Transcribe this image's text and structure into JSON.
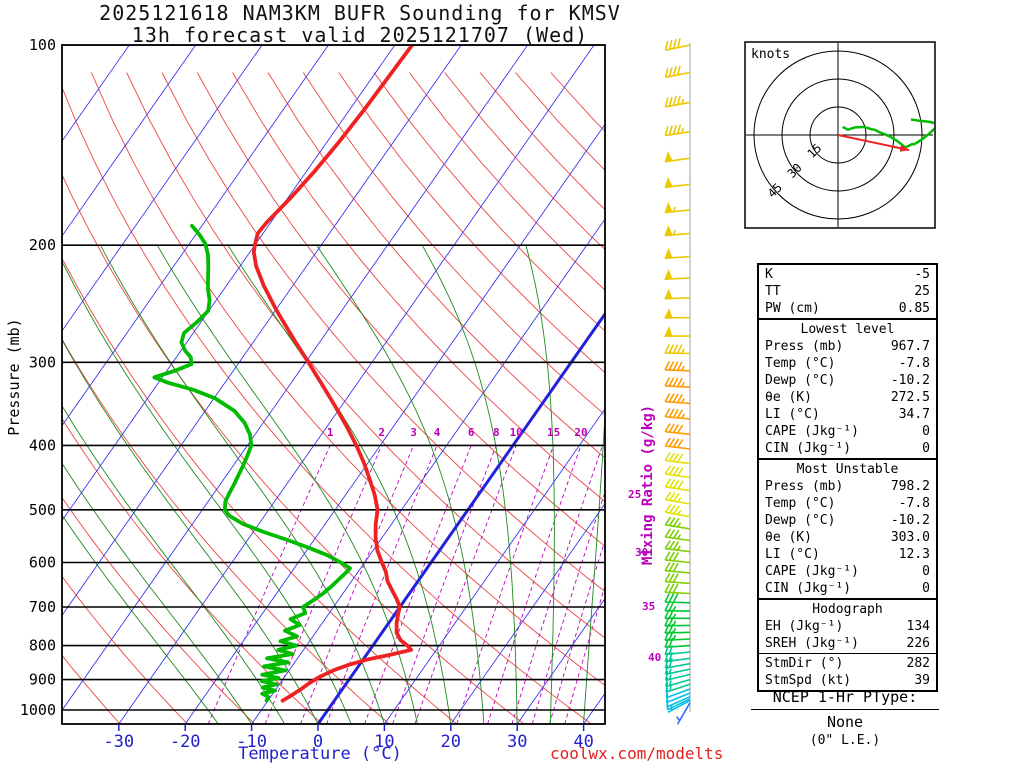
{
  "title": {
    "line1": "2025121618 NAM3KM BUFR Sounding for KMSV",
    "line2": "13h forecast valid 2025121707 (Wed)"
  },
  "watermark": "coolwx.com/modelts",
  "axes": {
    "x_label": "Temperature (°C)",
    "y_label": "Pressure (mb)",
    "right_label": "Mixing Ratio (g/kg)",
    "x_ticks": [
      -30,
      -20,
      -10,
      0,
      10,
      20,
      30,
      40
    ],
    "y_ticks": [
      100,
      200,
      300,
      400,
      500,
      600,
      700,
      800,
      900,
      1000
    ],
    "mixing_ratio_labels": [
      1,
      2,
      3,
      4,
      6,
      8,
      10,
      15,
      20
    ],
    "mixing_ratio_right_labels": [
      25,
      30,
      35,
      40
    ]
  },
  "hodograph": {
    "unit_label": "knots",
    "ring_labels": [
      15,
      30,
      45
    ],
    "rings_kt": [
      15,
      30,
      45
    ],
    "storm_motion": {
      "dir_deg": 282,
      "spd_kt": 39
    }
  },
  "ptype": {
    "label": "NCEP 1-Hr PType:",
    "value": "None",
    "footnote": "(0\" L.E.)"
  },
  "table": {
    "sections": [
      {
        "rows": [
          [
            "K",
            "-5"
          ],
          [
            "TT",
            "25"
          ],
          [
            "PW (cm)",
            "0.85"
          ]
        ]
      },
      {
        "header": "Lowest level",
        "rows": [
          [
            "Press (mb)",
            "967.7"
          ],
          [
            "Temp (°C)",
            "-7.8"
          ],
          [
            "Dewp (°C)",
            "-10.2"
          ],
          [
            "θe (K)",
            "272.5"
          ],
          [
            "LI (°C)",
            "34.7"
          ],
          [
            "CAPE (Jkg⁻¹)",
            "0"
          ],
          [
            "CIN (Jkg⁻¹)",
            "0"
          ]
        ]
      },
      {
        "header": "Most Unstable",
        "rows": [
          [
            "Press (mb)",
            "798.2"
          ],
          [
            "Temp (°C)",
            "-7.8"
          ],
          [
            "Dewp (°C)",
            "-10.2"
          ],
          [
            "θe (K)",
            "303.0"
          ],
          [
            "LI (°C)",
            "12.3"
          ],
          [
            "CAPE (Jkg⁻¹)",
            "0"
          ],
          [
            "CIN (Jkg⁻¹)",
            "0"
          ]
        ]
      },
      {
        "header": "Hodograph",
        "rows": [
          [
            "EH (Jkg⁻¹)",
            "134"
          ],
          [
            "SREH (Jkg⁻¹)",
            "226"
          ]
        ],
        "rows2": [
          [
            "StmDir (°)",
            "282"
          ],
          [
            "StmSpd (kt)",
            "39"
          ]
        ]
      }
    ]
  },
  "colors": {
    "isotherm": "#3b3bee",
    "isotherm_zero": "#2222dd",
    "dry_adiabat": "#ee4444",
    "moist_adiabat": "#1d8a1d",
    "mixing_ratio": "#bb00bb",
    "temperature": "#ee2222",
    "dewpoint": "#00bb00",
    "pressure_line": "#000000",
    "axis_temp": "#2222cc",
    "watermark": "#e02020",
    "wind_column_line": "#888888",
    "hodograph_trace": "#00bb00",
    "storm_motion": "#ee2222"
  },
  "chart_data": {
    "type": "skewt-log-p sounding",
    "station": "KMSV",
    "model": "NAM3KM BUFR",
    "pressure_range_mb": [
      100,
      1050
    ],
    "temp_axis_range_c": [
      -40,
      45
    ],
    "isotherms_c": {
      "min": -120,
      "max": 40,
      "step": 10
    },
    "dry_adiabats_theta_k": {
      "min": 230,
      "max": 450,
      "step": 10
    },
    "moist_adiabat_start_temps_c": [
      -15,
      -10,
      -5,
      0,
      5,
      10,
      15,
      20,
      25,
      30,
      35,
      40
    ],
    "mixing_ratio_lines_gkg": [
      1,
      2,
      3,
      4,
      6,
      8,
      10,
      15,
      20,
      25,
      30,
      35,
      40
    ],
    "temperature_profile": [
      [
        968,
        -7.8
      ],
      [
        950,
        -7.0
      ],
      [
        930,
        -6.2
      ],
      [
        910,
        -5.6
      ],
      [
        890,
        -4.6
      ],
      [
        870,
        -3.2
      ],
      [
        855,
        -1.6
      ],
      [
        840,
        0.6
      ],
      [
        825,
        3.8
      ],
      [
        812,
        6.2
      ],
      [
        800,
        5.2
      ],
      [
        785,
        3.6
      ],
      [
        765,
        2.2
      ],
      [
        740,
        1.2
      ],
      [
        715,
        0.4
      ],
      [
        700,
        0.0
      ],
      [
        680,
        -1.4
      ],
      [
        660,
        -3.0
      ],
      [
        640,
        -4.6
      ],
      [
        620,
        -5.8
      ],
      [
        600,
        -7.4
      ],
      [
        575,
        -9.4
      ],
      [
        550,
        -11.0
      ],
      [
        525,
        -12.4
      ],
      [
        500,
        -13.6
      ],
      [
        475,
        -15.6
      ],
      [
        450,
        -18.0
      ],
      [
        425,
        -20.6
      ],
      [
        400,
        -23.6
      ],
      [
        375,
        -27.0
      ],
      [
        350,
        -30.8
      ],
      [
        325,
        -35.0
      ],
      [
        300,
        -39.6
      ],
      [
        275,
        -44.6
      ],
      [
        250,
        -50.0
      ],
      [
        230,
        -54.4
      ],
      [
        215,
        -57.6
      ],
      [
        205,
        -59.4
      ],
      [
        200,
        -60.0
      ],
      [
        192,
        -60.8
      ],
      [
        185,
        -60.6
      ],
      [
        170,
        -59.6
      ],
      [
        155,
        -58.8
      ],
      [
        140,
        -58.2
      ],
      [
        125,
        -57.8
      ],
      [
        112,
        -57.6
      ],
      [
        100,
        -57.4
      ]
    ],
    "dewpoint_profile": [
      [
        968,
        -10.2
      ],
      [
        955,
        -10.4
      ],
      [
        945,
        -11.6
      ],
      [
        935,
        -10.0
      ],
      [
        925,
        -12.2
      ],
      [
        915,
        -10.4
      ],
      [
        905,
        -13.0
      ],
      [
        895,
        -10.8
      ],
      [
        885,
        -13.6
      ],
      [
        872,
        -10.6
      ],
      [
        860,
        -14.2
      ],
      [
        848,
        -11.0
      ],
      [
        836,
        -14.6
      ],
      [
        824,
        -11.2
      ],
      [
        812,
        -13.8
      ],
      [
        800,
        -11.6
      ],
      [
        788,
        -14.4
      ],
      [
        775,
        -12.4
      ],
      [
        760,
        -14.8
      ],
      [
        745,
        -13.2
      ],
      [
        730,
        -15.2
      ],
      [
        715,
        -13.6
      ],
      [
        700,
        -14.6
      ],
      [
        685,
        -13.8
      ],
      [
        668,
        -13.0
      ],
      [
        652,
        -12.5
      ],
      [
        636,
        -12.1
      ],
      [
        620,
        -11.7
      ],
      [
        612,
        -11.6
      ],
      [
        600,
        -13.6
      ],
      [
        585,
        -16.4
      ],
      [
        570,
        -20.0
      ],
      [
        555,
        -24.0
      ],
      [
        540,
        -28.4
      ],
      [
        525,
        -32.4
      ],
      [
        510,
        -35.4
      ],
      [
        500,
        -36.6
      ],
      [
        486,
        -37.4
      ],
      [
        472,
        -37.7
      ],
      [
        458,
        -37.9
      ],
      [
        444,
        -38.2
      ],
      [
        430,
        -38.5
      ],
      [
        415,
        -38.9
      ],
      [
        400,
        -39.4
      ],
      [
        385,
        -40.8
      ],
      [
        370,
        -42.8
      ],
      [
        355,
        -45.6
      ],
      [
        340,
        -49.8
      ],
      [
        330,
        -54.0
      ],
      [
        322,
        -58.6
      ],
      [
        316,
        -61.2
      ],
      [
        309,
        -58.8
      ],
      [
        302,
        -57.0
      ],
      [
        295,
        -57.8
      ],
      [
        288,
        -59.4
      ],
      [
        280,
        -60.8
      ],
      [
        271,
        -61.4
      ],
      [
        261,
        -60.6
      ],
      [
        251,
        -60.1
      ],
      [
        242,
        -61.0
      ],
      [
        233,
        -62.4
      ],
      [
        224,
        -63.6
      ],
      [
        215,
        -64.8
      ],
      [
        207,
        -66.0
      ],
      [
        199,
        -67.6
      ],
      [
        193,
        -69.4
      ],
      [
        187,
        -71.5
      ]
    ],
    "wind_profile": [
      {
        "p": 100,
        "s": 40,
        "d": 258,
        "c": "#edc800"
      },
      {
        "p": 110,
        "s": 42,
        "d": 259,
        "c": "#edc800"
      },
      {
        "p": 122,
        "s": 44,
        "d": 260,
        "c": "#edc800"
      },
      {
        "p": 135,
        "s": 47,
        "d": 261,
        "c": "#edc800"
      },
      {
        "p": 148,
        "s": 50,
        "d": 262,
        "c": "#edc800"
      },
      {
        "p": 162,
        "s": 52,
        "d": 263,
        "c": "#edc800"
      },
      {
        "p": 177,
        "s": 53,
        "d": 264,
        "c": "#edc800"
      },
      {
        "p": 192,
        "s": 53,
        "d": 265,
        "c": "#edc800"
      },
      {
        "p": 208,
        "s": 52,
        "d": 266,
        "c": "#edc800"
      },
      {
        "p": 224,
        "s": 51,
        "d": 267,
        "c": "#edc800"
      },
      {
        "p": 240,
        "s": 50,
        "d": 268,
        "c": "#edc800"
      },
      {
        "p": 257,
        "s": 49,
        "d": 269,
        "c": "#edc800"
      },
      {
        "p": 274,
        "s": 48,
        "d": 270,
        "c": "#edc800"
      },
      {
        "p": 291,
        "s": 47,
        "d": 271,
        "c": "#edc800"
      },
      {
        "p": 309,
        "s": 46,
        "d": 272,
        "c": "#ff9d00"
      },
      {
        "p": 327,
        "s": 45,
        "d": 273,
        "c": "#ff9d00"
      },
      {
        "p": 346,
        "s": 44,
        "d": 274,
        "c": "#ff9d00"
      },
      {
        "p": 365,
        "s": 43,
        "d": 275,
        "c": "#ff9d00"
      },
      {
        "p": 385,
        "s": 42,
        "d": 276,
        "c": "#ff9d00"
      },
      {
        "p": 405,
        "s": 41,
        "d": 277,
        "c": "#ff9d00"
      },
      {
        "p": 426,
        "s": 40,
        "d": 277,
        "c": "#e2e200"
      },
      {
        "p": 447,
        "s": 39,
        "d": 278,
        "c": "#e2e200"
      },
      {
        "p": 468,
        "s": 38,
        "d": 279,
        "c": "#e2e200"
      },
      {
        "p": 490,
        "s": 37,
        "d": 280,
        "c": "#e2e200"
      },
      {
        "p": 512,
        "s": 36,
        "d": 280,
        "c": "#e2e200"
      },
      {
        "p": 534,
        "s": 35,
        "d": 279,
        "c": "#7ccf00"
      },
      {
        "p": 556,
        "s": 34,
        "d": 278,
        "c": "#7ccf00"
      },
      {
        "p": 578,
        "s": 33,
        "d": 277,
        "c": "#7ccf00"
      },
      {
        "p": 600,
        "s": 32,
        "d": 276,
        "c": "#7ccf00"
      },
      {
        "p": 622,
        "s": 31,
        "d": 275,
        "c": "#7ccf00"
      },
      {
        "p": 645,
        "s": 30,
        "d": 274,
        "c": "#7ccf00"
      },
      {
        "p": 668,
        "s": 29,
        "d": 273,
        "c": "#7ccf00"
      },
      {
        "p": 690,
        "s": 28,
        "d": 272,
        "c": "#00c832"
      },
      {
        "p": 710,
        "s": 27,
        "d": 271,
        "c": "#00c832"
      },
      {
        "p": 728,
        "s": 26,
        "d": 270,
        "c": "#00c832"
      },
      {
        "p": 746,
        "s": 25,
        "d": 269,
        "c": "#00c832"
      },
      {
        "p": 764,
        "s": 24,
        "d": 268,
        "c": "#00c832"
      },
      {
        "p": 782,
        "s": 23,
        "d": 267,
        "c": "#00c832"
      },
      {
        "p": 800,
        "s": 22,
        "d": 266,
        "c": "#00c832"
      },
      {
        "p": 818,
        "s": 21,
        "d": 264,
        "c": "#00c894"
      },
      {
        "p": 836,
        "s": 20,
        "d": 262,
        "c": "#00c894"
      },
      {
        "p": 852,
        "s": 18,
        "d": 260,
        "c": "#00c894"
      },
      {
        "p": 868,
        "s": 17,
        "d": 258,
        "c": "#00c894"
      },
      {
        "p": 884,
        "s": 16,
        "d": 256,
        "c": "#00c894"
      },
      {
        "p": 900,
        "s": 15,
        "d": 254,
        "c": "#00c894"
      },
      {
        "p": 915,
        "s": 14,
        "d": 252,
        "c": "#00c894"
      },
      {
        "p": 930,
        "s": 12,
        "d": 250,
        "c": "#00c0e8"
      },
      {
        "p": 943,
        "s": 11,
        "d": 248,
        "c": "#00c0e8"
      },
      {
        "p": 955,
        "s": 10,
        "d": 246,
        "c": "#00c0e8"
      },
      {
        "p": 962,
        "s": 8,
        "d": 244,
        "c": "#00c0e8"
      },
      {
        "p": 968,
        "s": 6,
        "d": 242,
        "c": "#00c0e8"
      },
      {
        "p": 975,
        "s": 5,
        "d": 210,
        "c": "#3a6bff"
      }
    ]
  }
}
